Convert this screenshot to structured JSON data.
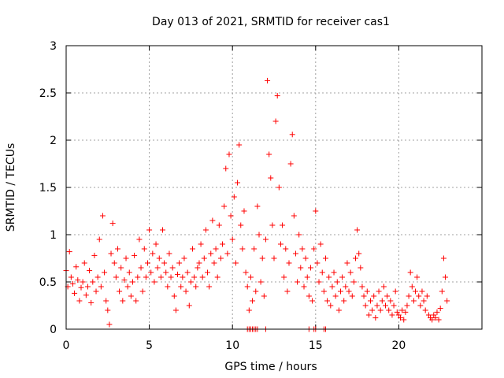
{
  "chart_data": {
    "type": "scatter",
    "title": "Day 013 of 2021, SRMTID for receiver cas1",
    "xlabel": "GPS time / hours",
    "ylabel": "SRMTID / TECUs",
    "xlim": [
      0,
      25
    ],
    "ylim": [
      0,
      3
    ],
    "xticks": [
      "0",
      "5",
      "10",
      "15",
      "20"
    ],
    "yticks": [
      "0",
      "0.5",
      "1",
      "1.5",
      "2",
      "2.5",
      "3"
    ],
    "grid": true,
    "marker": "plus",
    "color": "#ff0000",
    "series": [
      {
        "name": "SRMTID",
        "points": [
          [
            0.0,
            0.62
          ],
          [
            0.1,
            0.45
          ],
          [
            0.2,
            0.82
          ],
          [
            0.3,
            0.55
          ],
          [
            0.4,
            0.48
          ],
          [
            0.5,
            0.38
          ],
          [
            0.6,
            0.66
          ],
          [
            0.7,
            0.52
          ],
          [
            0.8,
            0.3
          ],
          [
            0.9,
            0.44
          ],
          [
            1.0,
            0.5
          ],
          [
            1.1,
            0.7
          ],
          [
            1.2,
            0.36
          ],
          [
            1.3,
            0.45
          ],
          [
            1.4,
            0.62
          ],
          [
            1.5,
            0.28
          ],
          [
            1.6,
            0.5
          ],
          [
            1.7,
            0.78
          ],
          [
            1.8,
            0.4
          ],
          [
            1.9,
            0.55
          ],
          [
            2.0,
            0.95
          ],
          [
            2.1,
            0.45
          ],
          [
            2.2,
            1.2
          ],
          [
            2.3,
            0.6
          ],
          [
            2.4,
            0.3
          ],
          [
            2.5,
            0.2
          ],
          [
            2.6,
            0.05
          ],
          [
            2.7,
            0.8
          ],
          [
            2.8,
            1.12
          ],
          [
            2.9,
            0.7
          ],
          [
            3.0,
            0.55
          ],
          [
            3.1,
            0.85
          ],
          [
            3.2,
            0.4
          ],
          [
            3.3,
            0.65
          ],
          [
            3.4,
            0.3
          ],
          [
            3.5,
            0.52
          ],
          [
            3.6,
            0.75
          ],
          [
            3.7,
            0.45
          ],
          [
            3.8,
            0.6
          ],
          [
            3.9,
            0.35
          ],
          [
            4.0,
            0.5
          ],
          [
            4.1,
            0.78
          ],
          [
            4.2,
            0.3
          ],
          [
            4.3,
            0.55
          ],
          [
            4.4,
            0.95
          ],
          [
            4.5,
            0.65
          ],
          [
            4.6,
            0.4
          ],
          [
            4.7,
            0.85
          ],
          [
            4.8,
            0.55
          ],
          [
            4.9,
            0.7
          ],
          [
            5.0,
            1.05
          ],
          [
            5.1,
            0.6
          ],
          [
            5.2,
            0.8
          ],
          [
            5.3,
            0.5
          ],
          [
            5.4,
            0.9
          ],
          [
            5.5,
            0.65
          ],
          [
            5.6,
            0.75
          ],
          [
            5.7,
            0.55
          ],
          [
            5.8,
            1.05
          ],
          [
            5.9,
            0.7
          ],
          [
            6.0,
            0.6
          ],
          [
            6.1,
            0.45
          ],
          [
            6.2,
            0.8
          ],
          [
            6.3,
            0.55
          ],
          [
            6.4,
            0.65
          ],
          [
            6.5,
            0.35
          ],
          [
            6.6,
            0.2
          ],
          [
            6.7,
            0.58
          ],
          [
            6.8,
            0.7
          ],
          [
            6.9,
            0.45
          ],
          [
            7.0,
            0.55
          ],
          [
            7.1,
            0.75
          ],
          [
            7.2,
            0.4
          ],
          [
            7.3,
            0.6
          ],
          [
            7.4,
            0.25
          ],
          [
            7.5,
            0.5
          ],
          [
            7.6,
            0.85
          ],
          [
            7.7,
            0.55
          ],
          [
            7.8,
            0.45
          ],
          [
            7.9,
            0.65
          ],
          [
            8.0,
            0.7
          ],
          [
            8.1,
            0.9
          ],
          [
            8.2,
            0.55
          ],
          [
            8.3,
            0.75
          ],
          [
            8.4,
            1.05
          ],
          [
            8.5,
            0.6
          ],
          [
            8.6,
            0.45
          ],
          [
            8.7,
            0.8
          ],
          [
            8.8,
            1.15
          ],
          [
            8.9,
            0.7
          ],
          [
            9.0,
            0.85
          ],
          [
            9.1,
            0.55
          ],
          [
            9.2,
            1.1
          ],
          [
            9.3,
            0.75
          ],
          [
            9.4,
            0.9
          ],
          [
            9.5,
            1.3
          ],
          [
            9.6,
            1.7
          ],
          [
            9.7,
            0.8
          ],
          [
            9.8,
            1.85
          ],
          [
            9.9,
            1.2
          ],
          [
            10.0,
            0.95
          ],
          [
            10.1,
            1.4
          ],
          [
            10.2,
            0.7
          ],
          [
            10.3,
            1.55
          ],
          [
            10.4,
            1.95
          ],
          [
            10.5,
            1.1
          ],
          [
            10.6,
            0.85
          ],
          [
            10.7,
            1.25
          ],
          [
            10.8,
            0.6
          ],
          [
            10.9,
            0.45
          ],
          [
            11.0,
            0.2
          ],
          [
            11.1,
            0.55
          ],
          [
            11.2,
            0.3
          ],
          [
            11.3,
            0.85
          ],
          [
            11.4,
            0.4
          ],
          [
            11.5,
            1.3
          ],
          [
            11.6,
            1.0
          ],
          [
            11.7,
            0.5
          ],
          [
            11.8,
            0.75
          ],
          [
            11.9,
            0.35
          ],
          [
            12.0,
            0.95
          ],
          [
            12.1,
            2.63
          ],
          [
            12.2,
            1.85
          ],
          [
            12.3,
            1.6
          ],
          [
            12.4,
            1.1
          ],
          [
            12.5,
            0.75
          ],
          [
            12.6,
            2.2
          ],
          [
            12.7,
            2.47
          ],
          [
            12.8,
            1.5
          ],
          [
            12.9,
            0.9
          ],
          [
            13.0,
            1.1
          ],
          [
            13.1,
            0.55
          ],
          [
            13.2,
            0.85
          ],
          [
            13.3,
            0.4
          ],
          [
            13.4,
            0.7
          ],
          [
            13.5,
            1.75
          ],
          [
            13.6,
            2.06
          ],
          [
            13.7,
            1.2
          ],
          [
            13.8,
            0.8
          ],
          [
            13.9,
            0.5
          ],
          [
            14.0,
            1.0
          ],
          [
            14.1,
            0.65
          ],
          [
            14.2,
            0.85
          ],
          [
            14.3,
            0.45
          ],
          [
            14.4,
            0.75
          ],
          [
            14.5,
            0.55
          ],
          [
            14.6,
            0.35
          ],
          [
            14.7,
            0.65
          ],
          [
            14.8,
            0.3
          ],
          [
            14.9,
            0.85
          ],
          [
            15.0,
            1.25
          ],
          [
            15.1,
            0.7
          ],
          [
            15.2,
            0.5
          ],
          [
            15.3,
            0.9
          ],
          [
            15.4,
            0.6
          ],
          [
            15.5,
            0.4
          ],
          [
            15.6,
            0.75
          ],
          [
            15.7,
            0.3
          ],
          [
            15.8,
            0.55
          ],
          [
            15.9,
            0.25
          ],
          [
            16.0,
            0.45
          ],
          [
            16.1,
            0.6
          ],
          [
            16.2,
            0.35
          ],
          [
            16.3,
            0.5
          ],
          [
            16.4,
            0.2
          ],
          [
            16.5,
            0.4
          ],
          [
            16.6,
            0.55
          ],
          [
            16.7,
            0.3
          ],
          [
            16.8,
            0.45
          ],
          [
            16.9,
            0.7
          ],
          [
            17.0,
            0.4
          ],
          [
            17.1,
            0.6
          ],
          [
            17.2,
            0.35
          ],
          [
            17.3,
            0.5
          ],
          [
            17.4,
            0.75
          ],
          [
            17.5,
            1.05
          ],
          [
            17.6,
            0.8
          ],
          [
            17.7,
            0.65
          ],
          [
            17.8,
            0.45
          ],
          [
            17.9,
            0.35
          ],
          [
            18.0,
            0.25
          ],
          [
            18.1,
            0.4
          ],
          [
            18.2,
            0.15
          ],
          [
            18.3,
            0.3
          ],
          [
            18.4,
            0.2
          ],
          [
            18.5,
            0.35
          ],
          [
            18.6,
            0.12
          ],
          [
            18.7,
            0.25
          ],
          [
            18.8,
            0.4
          ],
          [
            18.9,
            0.2
          ],
          [
            19.0,
            0.3
          ],
          [
            19.1,
            0.45
          ],
          [
            19.2,
            0.25
          ],
          [
            19.3,
            0.35
          ],
          [
            19.4,
            0.2
          ],
          [
            19.5,
            0.3
          ],
          [
            19.6,
            0.15
          ],
          [
            19.7,
            0.25
          ],
          [
            19.8,
            0.4
          ],
          [
            19.9,
            0.18
          ],
          [
            20.0,
            0.15
          ],
          [
            20.1,
            0.12
          ],
          [
            20.2,
            0.2
          ],
          [
            20.3,
            0.1
          ],
          [
            20.4,
            0.18
          ],
          [
            20.5,
            0.25
          ],
          [
            20.6,
            0.35
          ],
          [
            20.7,
            0.6
          ],
          [
            20.8,
            0.45
          ],
          [
            20.9,
            0.3
          ],
          [
            21.0,
            0.4
          ],
          [
            21.1,
            0.55
          ],
          [
            21.2,
            0.35
          ],
          [
            21.3,
            0.25
          ],
          [
            21.4,
            0.4
          ],
          [
            21.5,
            0.3
          ],
          [
            21.6,
            0.2
          ],
          [
            21.7,
            0.35
          ],
          [
            21.8,
            0.15
          ],
          [
            21.9,
            0.12
          ],
          [
            22.0,
            0.1
          ],
          [
            22.1,
            0.15
          ],
          [
            22.2,
            0.12
          ],
          [
            22.3,
            0.18
          ],
          [
            22.4,
            0.1
          ],
          [
            22.5,
            0.22
          ],
          [
            22.6,
            0.4
          ],
          [
            22.7,
            0.75
          ],
          [
            22.8,
            0.55
          ],
          [
            22.9,
            0.3
          ],
          [
            10.9,
            0.0
          ],
          [
            11.0,
            0.0
          ],
          [
            11.1,
            0.0
          ],
          [
            11.2,
            0.0
          ],
          [
            11.3,
            0.0
          ],
          [
            11.4,
            0.0
          ],
          [
            11.5,
            0.0
          ],
          [
            12.0,
            0.0
          ],
          [
            14.6,
            0.0
          ],
          [
            14.9,
            0.0
          ],
          [
            15.0,
            0.0
          ],
          [
            15.5,
            0.0
          ],
          [
            15.6,
            0.0
          ]
        ]
      }
    ]
  }
}
